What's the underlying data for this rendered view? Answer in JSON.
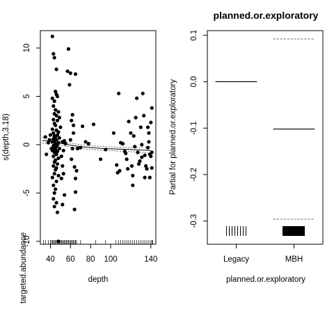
{
  "chart_data": [
    {
      "type": "scatter",
      "title": "",
      "xlabel": "depth",
      "ylabel": "s(depth,3.18)",
      "extra_ylabel": "targeted.abundance",
      "xlim": [
        30,
        145
      ],
      "ylim": [
        -10.3,
        11.8
      ],
      "x_ticks": [
        40,
        60,
        80,
        100,
        140
      ],
      "x_tick_labels": [
        "40",
        "60",
        "80",
        "100",
        "140"
      ],
      "y_ticks": [
        -10,
        -5,
        0,
        5,
        10
      ],
      "y_tick_labels": [
        "-10",
        "-5",
        "0",
        "5",
        "10"
      ],
      "smooth": {
        "x": [
          32,
          40,
          50,
          60,
          70,
          80,
          90,
          100,
          110,
          120,
          130,
          140
        ],
        "fit": [
          0.45,
          0.35,
          0.15,
          -0.05,
          -0.2,
          -0.3,
          -0.38,
          -0.43,
          -0.47,
          -0.5,
          -0.55,
          -0.6
        ],
        "upper": [
          0.75,
          0.55,
          0.35,
          0.15,
          0.0,
          -0.1,
          -0.18,
          -0.23,
          -0.27,
          -0.3,
          -0.3,
          -0.3
        ],
        "lower": [
          0.15,
          0.15,
          -0.05,
          -0.25,
          -0.4,
          -0.5,
          -0.58,
          -0.63,
          -0.67,
          -0.72,
          -0.8,
          -0.9
        ]
      },
      "points": [
        [
          42,
          11.2
        ],
        [
          43,
          9.4
        ],
        [
          44,
          9.0
        ],
        [
          46,
          7.8
        ],
        [
          45,
          5.5
        ],
        [
          46,
          5.2
        ],
        [
          47,
          5.0
        ],
        [
          42,
          4.8
        ],
        [
          44,
          4.5
        ],
        [
          43,
          4.0
        ],
        [
          45,
          3.6
        ],
        [
          48,
          3.4
        ],
        [
          44,
          3.2
        ],
        [
          46,
          3.0
        ],
        [
          49,
          2.8
        ],
        [
          43,
          2.6
        ],
        [
          47,
          2.5
        ],
        [
          44,
          2.2
        ],
        [
          45,
          2.0
        ],
        [
          50,
          1.8
        ],
        [
          42,
          1.6
        ],
        [
          46,
          1.5
        ],
        [
          48,
          1.3
        ],
        [
          43,
          1.2
        ],
        [
          47,
          1.0
        ],
        [
          44,
          0.9
        ],
        [
          45,
          0.8
        ],
        [
          49,
          0.7
        ],
        [
          43,
          0.6
        ],
        [
          46,
          0.5
        ],
        [
          44,
          0.4
        ],
        [
          42,
          0.3
        ],
        [
          48,
          0.2
        ],
        [
          45,
          0.1
        ],
        [
          47,
          0.0
        ],
        [
          43,
          -0.1
        ],
        [
          46,
          -0.2
        ],
        [
          44,
          -0.3
        ],
        [
          49,
          -0.4
        ],
        [
          45,
          -0.5
        ],
        [
          42,
          -0.6
        ],
        [
          47,
          -0.7
        ],
        [
          44,
          -0.8
        ],
        [
          46,
          -1.0
        ],
        [
          43,
          -1.2
        ],
        [
          48,
          -1.4
        ],
        [
          45,
          -1.6
        ],
        [
          44,
          -1.8
        ],
        [
          47,
          -2.0
        ],
        [
          43,
          -2.2
        ],
        [
          46,
          -2.4
        ],
        [
          45,
          -2.6
        ],
        [
          44,
          -3.0
        ],
        [
          48,
          -3.2
        ],
        [
          42,
          -3.4
        ],
        [
          46,
          -3.8
        ],
        [
          43,
          -4.2
        ],
        [
          45,
          -4.6
        ],
        [
          44,
          -5.0
        ],
        [
          43,
          -5.6
        ],
        [
          46,
          -6.0
        ],
        [
          44,
          -6.4
        ],
        [
          47,
          -7.0
        ],
        [
          48,
          -10.0
        ],
        [
          35,
          0.8
        ],
        [
          36,
          -1.0
        ],
        [
          38,
          0.2
        ],
        [
          39,
          0.5
        ],
        [
          41,
          -0.4
        ],
        [
          40,
          1.0
        ],
        [
          52,
          0.3
        ],
        [
          53,
          -0.6
        ],
        [
          54,
          0.4
        ],
        [
          55,
          0.1
        ],
        [
          51,
          -1.2
        ],
        [
          52,
          -2.2
        ],
        [
          53,
          -3.0
        ],
        [
          51,
          -3.5
        ],
        [
          54,
          -5.2
        ],
        [
          52,
          -6.2
        ],
        [
          57,
          7.6
        ],
        [
          58,
          9.9
        ],
        [
          59,
          6.2
        ],
        [
          60,
          7.4
        ],
        [
          62,
          3.1
        ],
        [
          61,
          2.5
        ],
        [
          63,
          1.2
        ],
        [
          63,
          2.0
        ],
        [
          60,
          0.5
        ],
        [
          62,
          -0.4
        ],
        [
          61,
          -1.5
        ],
        [
          64,
          -2.3
        ],
        [
          65,
          7.3
        ],
        [
          66,
          -2.7
        ],
        [
          65,
          -3.5
        ],
        [
          65,
          -4.9
        ],
        [
          64,
          -6.7
        ],
        [
          67,
          -0.4
        ],
        [
          70,
          -0.3
        ],
        [
          72,
          1.9
        ],
        [
          75,
          0.3
        ],
        [
          78,
          0.1
        ],
        [
          83,
          2.1
        ],
        [
          90,
          -1.5
        ],
        [
          95,
          -0.5
        ],
        [
          103,
          1.2
        ],
        [
          108,
          5.3
        ],
        [
          110,
          0.2
        ],
        [
          106,
          -2.1
        ],
        [
          107,
          -2.9
        ],
        [
          109,
          -2.7
        ],
        [
          112,
          0.1
        ],
        [
          114,
          -0.7
        ],
        [
          115,
          -0.9
        ],
        [
          116,
          -1.5
        ],
        [
          118,
          2.4
        ],
        [
          117,
          -2.5
        ],
        [
          120,
          1.2
        ],
        [
          121,
          -2.2
        ],
        [
          122,
          -3.2
        ],
        [
          122,
          -4.2
        ],
        [
          125,
          2.8
        ],
        [
          126,
          4.8
        ],
        [
          123,
          0.9
        ],
        [
          124,
          -0.2
        ],
        [
          127,
          -0.8
        ],
        [
          128,
          -2.0
        ],
        [
          129,
          -1.7
        ],
        [
          130,
          1.8
        ],
        [
          131,
          0.0
        ],
        [
          131,
          -1.3
        ],
        [
          132,
          5.3
        ],
        [
          133,
          3.0
        ],
        [
          134,
          -1.1
        ],
        [
          135,
          -2.2
        ],
        [
          134,
          -3.4
        ],
        [
          136,
          -2.5
        ],
        [
          137,
          -0.3
        ],
        [
          138,
          0.3
        ],
        [
          139,
          -3.4
        ],
        [
          140,
          2.3
        ],
        [
          141,
          3.8
        ],
        [
          140,
          -1.2
        ],
        [
          141,
          -0.8
        ],
        [
          139,
          -1.0
        ],
        [
          138,
          1.2
        ],
        [
          137,
          1.8
        ],
        [
          141,
          -2.4
        ]
      ],
      "rug": [
        33,
        35,
        38,
        40,
        41,
        42,
        43,
        44,
        45,
        46,
        47,
        48,
        49,
        50,
        51,
        52,
        53,
        54,
        55,
        56,
        57,
        58,
        59,
        60,
        61,
        62,
        63,
        64,
        65,
        66,
        70,
        85,
        95,
        105,
        108,
        110,
        112,
        114,
        116,
        118,
        120,
        122,
        124,
        126,
        128,
        130,
        132,
        134,
        136,
        138,
        140,
        141,
        142
      ]
    },
    {
      "type": "categorical-partial",
      "title": "planned.or.exploratory",
      "xlabel": "planned.or.exploratory",
      "ylabel": "Partial for planned.or.exploratory",
      "categories": [
        "Legacy",
        "MBH"
      ],
      "estimates": [
        0.0,
        -0.102
      ],
      "upper": [
        0.0,
        0.092
      ],
      "lower": [
        0.0,
        -0.296
      ],
      "ylim": [
        -0.35,
        0.11
      ],
      "y_ticks": [
        -0.3,
        -0.2,
        -0.1,
        0.0,
        0.1
      ],
      "y_tick_labels": [
        "-0.3",
        "-0.2",
        "-0.1",
        "0.0",
        "0.1"
      ]
    }
  ]
}
